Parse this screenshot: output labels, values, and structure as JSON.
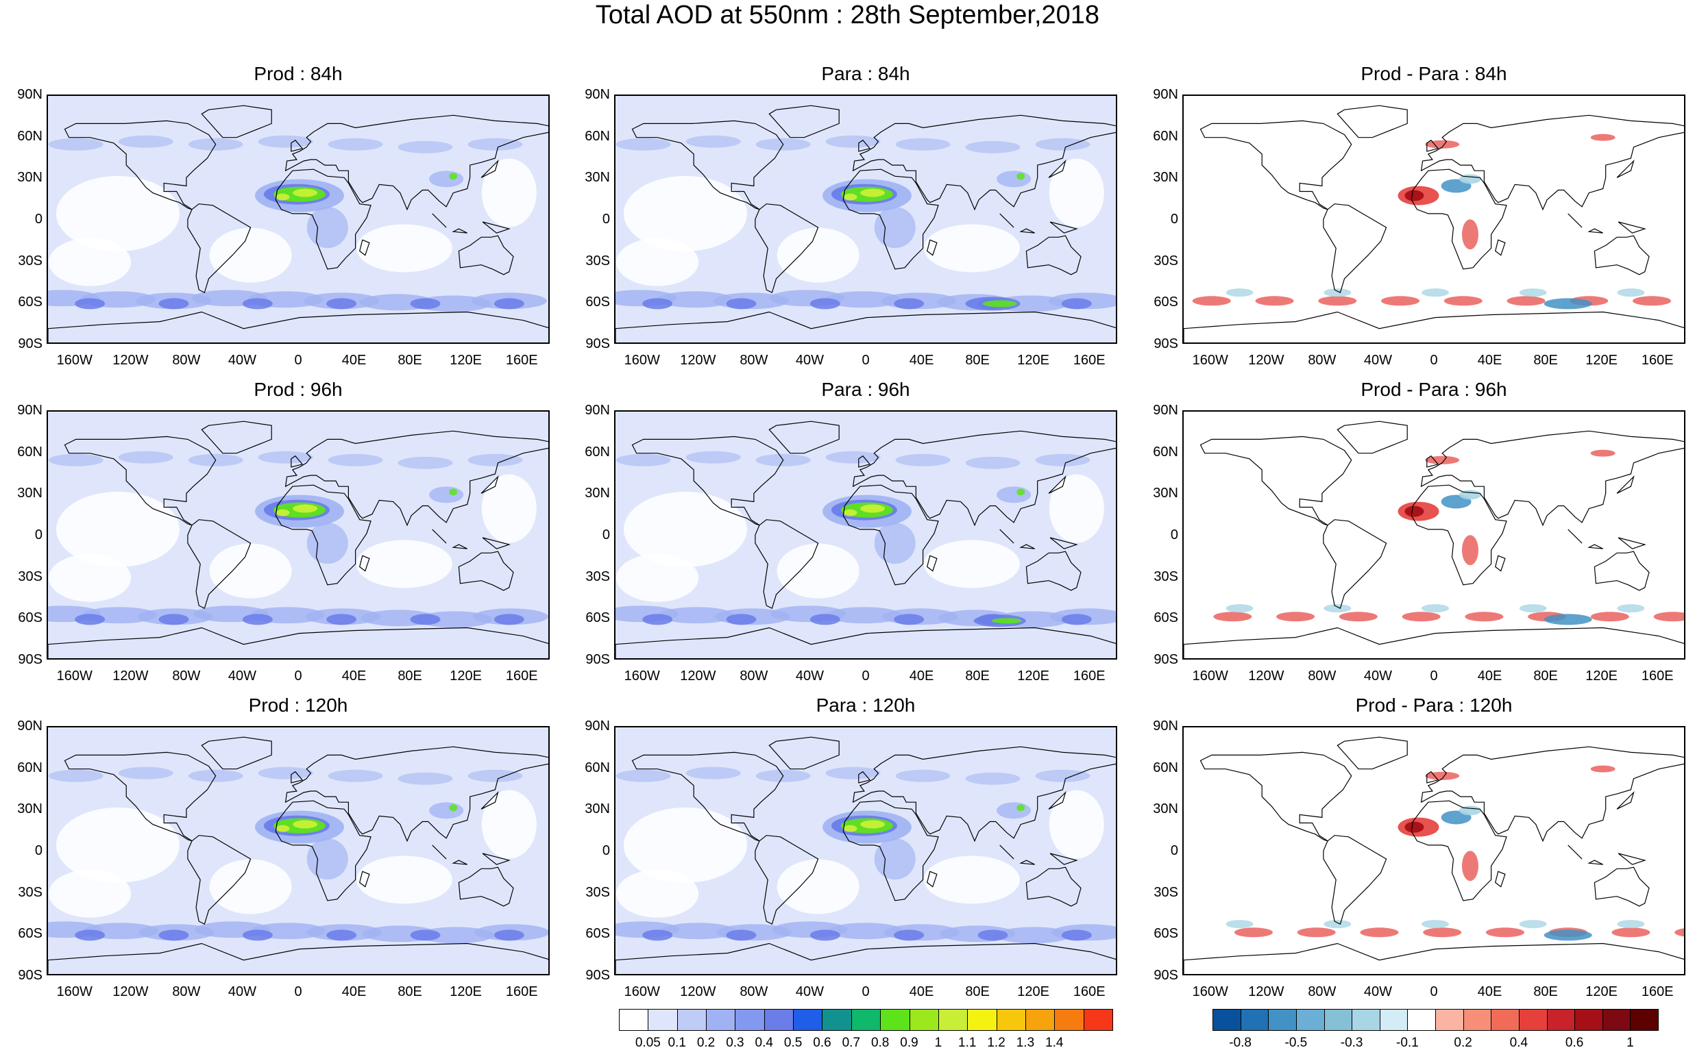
{
  "title": "Total AOD at 550nm : 28th September,2018",
  "panels": [
    {
      "title": "Prod : 84h",
      "kind": "aod",
      "hour": "84h"
    },
    {
      "title": "Para : 84h",
      "kind": "aod",
      "hour": "84h"
    },
    {
      "title": "Prod - Para : 84h",
      "kind": "diff",
      "hour": "84h"
    },
    {
      "title": "Prod : 96h",
      "kind": "aod",
      "hour": "96h"
    },
    {
      "title": "Para : 96h",
      "kind": "aod",
      "hour": "96h"
    },
    {
      "title": "Prod - Para : 96h",
      "kind": "diff",
      "hour": "96h"
    },
    {
      "title": "Prod : 120h",
      "kind": "aod",
      "hour": "120h"
    },
    {
      "title": "Para : 120h",
      "kind": "aod",
      "hour": "120h"
    },
    {
      "title": "Prod - Para : 120h",
      "kind": "diff",
      "hour": "120h"
    }
  ],
  "lat_labels": [
    "90N",
    "60N",
    "30N",
    "0",
    "30S",
    "60S",
    "90S"
  ],
  "lon_labels": [
    "160W",
    "120W",
    "80W",
    "40W",
    "0",
    "40E",
    "80E",
    "120E",
    "160E"
  ],
  "aod_colorbar": {
    "labels": [
      "0.05",
      "0.1",
      "0.2",
      "0.3",
      "0.4",
      "0.5",
      "0.6",
      "0.7",
      "0.8",
      "0.9",
      "1",
      "1.1",
      "1.2",
      "1.3",
      "1.4"
    ],
    "colors": [
      "#ffffff",
      "#dfe6fb",
      "#bfccf7",
      "#a0b2f3",
      "#8398ef",
      "#6a7de9",
      "#1f5ee8",
      "#11918f",
      "#0fb86a",
      "#5de31a",
      "#9be81c",
      "#c8ef36",
      "#f5f212",
      "#f7c70c",
      "#f7a30d",
      "#f77c10",
      "#f73818"
    ]
  },
  "diff_colorbar": {
    "labels": [
      "-0.8",
      "-0.5",
      "-0.3",
      "-0.1",
      "0.2",
      "0.4",
      "0.6",
      "1"
    ],
    "colors": [
      "#08519c",
      "#2171b5",
      "#4292c6",
      "#6baed6",
      "#86c0d6",
      "#a9d6e5",
      "#d4ecf5",
      "#ffffff",
      "#f9b4a2",
      "#f78f78",
      "#f26b58",
      "#e6403c",
      "#c8222a",
      "#a50f15",
      "#7d0a12",
      "#5c0000"
    ]
  },
  "colors": {
    "land_line": "#000000",
    "aod_light": "#dfe6fb",
    "aod_mid": "#a0b2f3",
    "aod_blue": "#6a7de9",
    "dust_green": "#5de31a",
    "dust_yellow": "#c8ef36",
    "diff_red": "#e6403c",
    "diff_darkred": "#a50f15",
    "diff_blue": "#4292c6",
    "diff_lightblue": "#a9d6e5"
  }
}
